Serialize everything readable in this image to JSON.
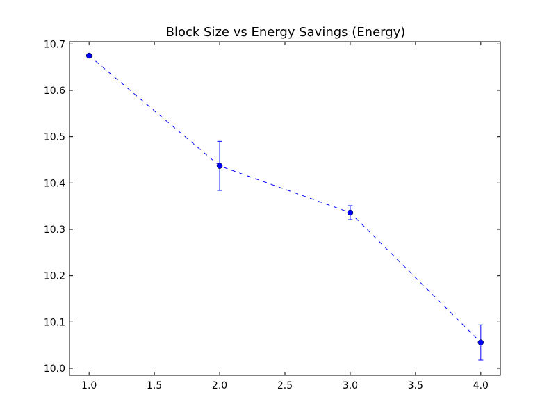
{
  "chart_data": {
    "type": "line",
    "title": "Block Size vs Energy Savings (Energy)",
    "xlabel": "",
    "ylabel": "",
    "xlim": [
      0.85,
      4.15
    ],
    "ylim": [
      9.985,
      10.705
    ],
    "x_ticks": [
      1.0,
      1.5,
      2.0,
      2.5,
      3.0,
      3.5,
      4.0
    ],
    "x_tick_labels": [
      "1.0",
      "1.5",
      "2.0",
      "2.5",
      "3.0",
      "3.5",
      "4.0"
    ],
    "y_ticks": [
      10.0,
      10.1,
      10.2,
      10.3,
      10.4,
      10.5,
      10.6,
      10.7
    ],
    "y_tick_labels": [
      "10.0",
      "10.1",
      "10.2",
      "10.3",
      "10.4",
      "10.5",
      "10.6",
      "10.7"
    ],
    "grid": false,
    "series": [
      {
        "x": [
          1.0,
          2.0,
          3.0,
          4.0
        ],
        "y": [
          10.675,
          10.437,
          10.336,
          10.056
        ],
        "yerr": [
          0.0,
          0.053,
          0.015,
          0.038
        ],
        "color": "#0000ff",
        "line_style": "dashed",
        "marker": "circle"
      }
    ]
  }
}
